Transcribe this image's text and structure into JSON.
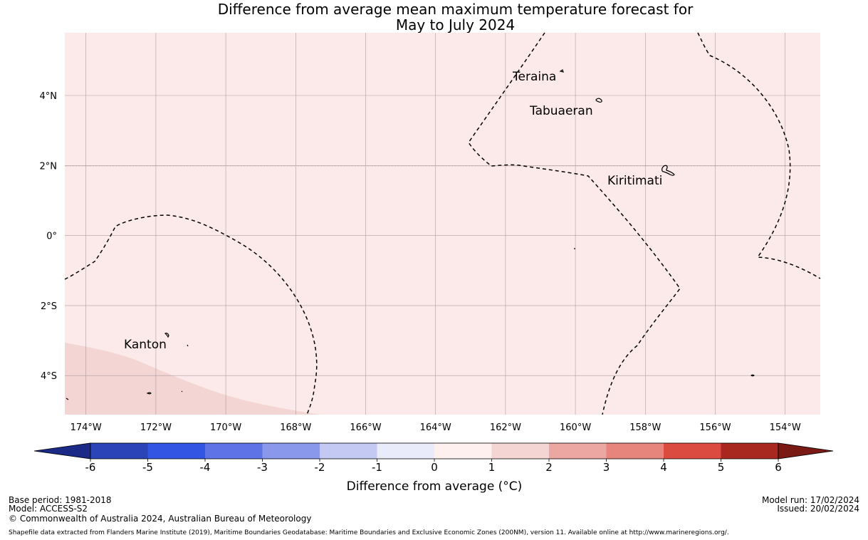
{
  "title": {
    "line1": "Difference from average mean maximum temperature forecast for",
    "line2": "May to July 2024"
  },
  "map": {
    "lat_ticks": [
      "4°N",
      "2°N",
      "0°",
      "2°S",
      "4°S"
    ],
    "lon_ticks": [
      "174°W",
      "172°W",
      "170°W",
      "168°W",
      "166°W",
      "164°W",
      "162°W",
      "160°W",
      "158°W",
      "156°W",
      "154°W"
    ],
    "places": [
      "Teraina",
      "Tabuaeran",
      "Kiritimati",
      "Kanton"
    ],
    "colors": {
      "background_band": "#fbeae9",
      "southwest_band": "#f3d6d4",
      "gridline": "#8f7f86",
      "equator_line": "#e5a9a6",
      "boundary": "#000000"
    }
  },
  "colorbar": {
    "ticks": [
      "-6",
      "-5",
      "-4",
      "-3",
      "-2",
      "-1",
      "0",
      "1",
      "2",
      "3",
      "4",
      "5",
      "6"
    ],
    "colors": [
      "#1a2a86",
      "#2b44b8",
      "#3355e3",
      "#5e73e5",
      "#8998eb",
      "#c3c9f3",
      "#e9ebfb",
      "#fdf0ee",
      "#f4d5d3",
      "#eda7a3",
      "#e7857d",
      "#dc4b40",
      "#a8271f",
      "#7a1a14"
    ],
    "label": "Difference from average (°C)"
  },
  "footer": {
    "base_period": "Base period: 1981-2018",
    "model": "Model: ACCESS-S2",
    "copyright": "© Commonwealth of Australia 2024, Australian Bureau of Meteorology",
    "model_run": "Model run: 17/02/2024",
    "issued": "Issued: 20/02/2024",
    "shapefile_credit": "Shapefile data extracted from Flanders Marine Institute (2019), Maritime Boundaries Geodatabase: Maritime Boundaries and Exclusive Economic Zones (200NM), version 11. Available online at http://www.marineregions.org/."
  }
}
